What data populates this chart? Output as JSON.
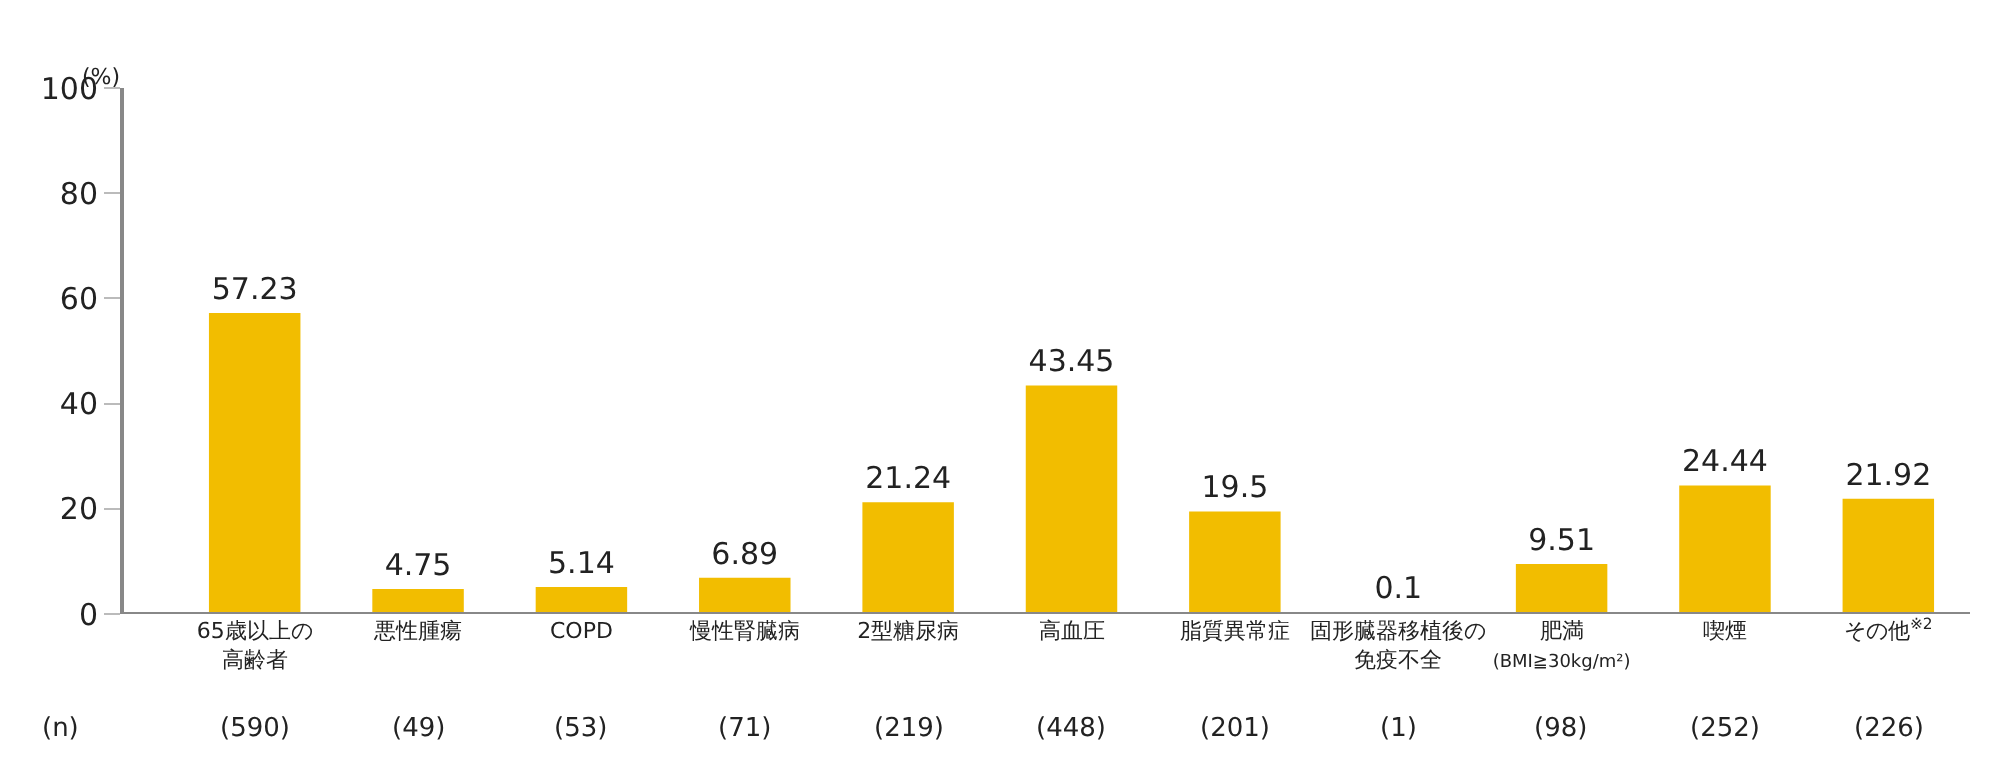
{
  "chart_data": {
    "type": "bar",
    "ylabel": "(%)",
    "categories": [
      "65歳以上の高齢者",
      "悪性腫瘍",
      "COPD",
      "慢性腎臓病",
      "2型糖尿病",
      "高血圧",
      "脂質異常症",
      "固形臓器移植後の免疫不全",
      "肥満\n(BMI≧30kg/m²)",
      "喫煙",
      "その他$^{※2}$"
    ],
    "values": [
      57.23,
      4.75,
      5.14,
      6.89,
      21.24,
      43.45,
      19.5,
      0.1,
      9.51,
      24.44,
      21.92
    ],
    "color": "#f2bd00",
    "ylim": [
      0,
      100
    ],
    "yticks": [
      0,
      20,
      40,
      60,
      80,
      100
    ],
    "data_labels": true,
    "annotations": [
      "(n)",
      "(590)",
      "(49)",
      "(53)",
      "(71)",
      "(219)",
      "(448)",
      "(201)",
      "(1)",
      "(98)",
      "(252)",
      "(226)"
    ]
  }
}
